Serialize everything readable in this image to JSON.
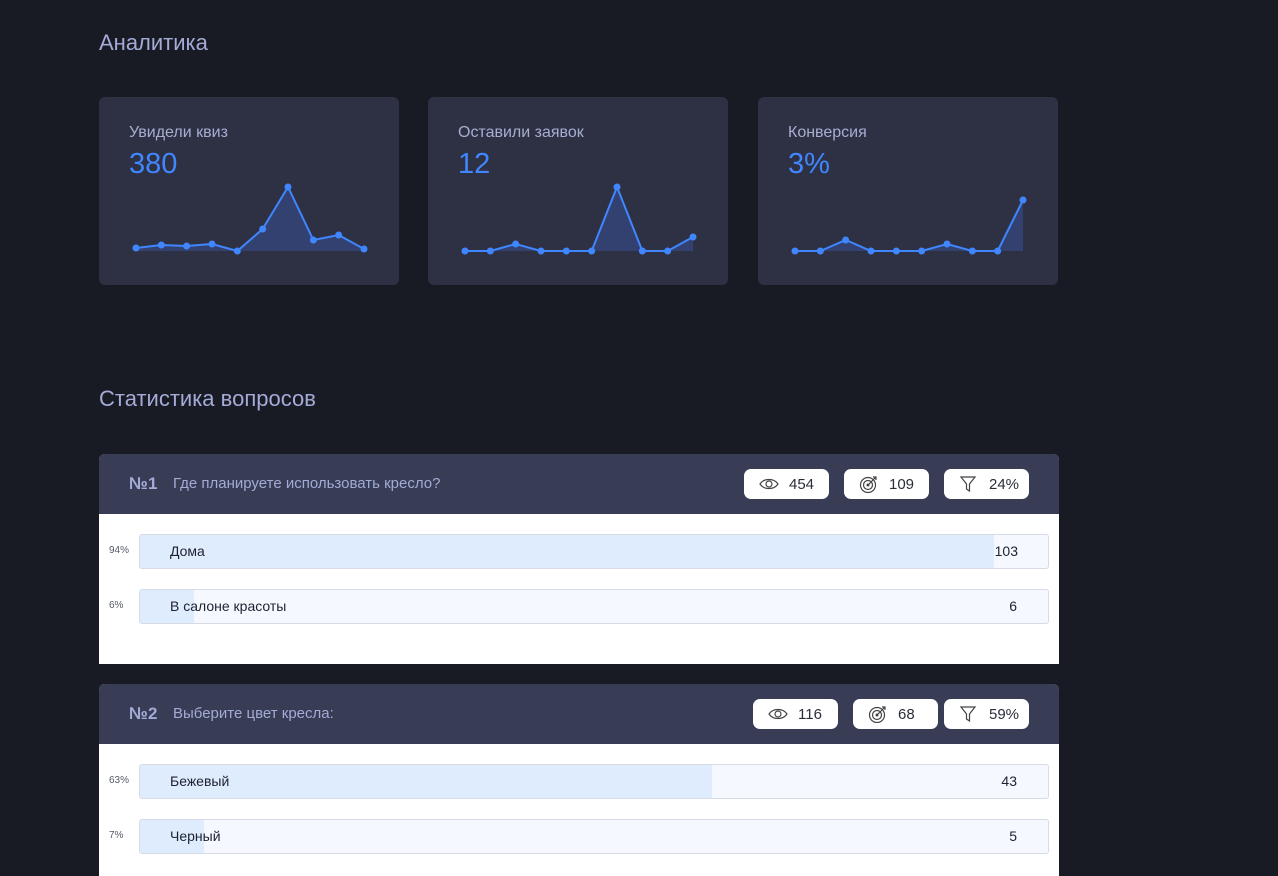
{
  "analytics": {
    "title": "Аналитика",
    "cards": [
      {
        "label": "Увидели квиз",
        "value": "380",
        "series": [
          3,
          6,
          5,
          7,
          0,
          22,
          64,
          11,
          16,
          2
        ]
      },
      {
        "label": "Оставили заявок",
        "value": "12",
        "series": [
          0,
          0,
          7,
          0,
          0,
          0,
          64,
          0,
          0,
          14
        ]
      },
      {
        "label": "Конверсия",
        "value": "3%",
        "series": [
          0,
          0,
          11,
          0,
          0,
          0,
          7,
          0,
          0,
          51
        ]
      }
    ],
    "accent_color": "#3f86ff",
    "card_bg": "#2e3144"
  },
  "questions": {
    "title": "Статистика вопросов",
    "items": [
      {
        "number": "№1",
        "text": "Где планируете использовать кресло?",
        "stats": {
          "views": "454",
          "answers": "109",
          "conversion": "24%"
        },
        "answers": [
          {
            "percent_label": "94%",
            "fill": 0.94,
            "label": "Дома",
            "count": "103"
          },
          {
            "percent_label": "6%",
            "fill": 0.06,
            "label": "В салоне красоты",
            "count": "6"
          }
        ]
      },
      {
        "number": "№2",
        "text": "Выберите цвет кресла:",
        "stats": {
          "views": "116",
          "answers": "68",
          "conversion": "59%"
        },
        "answers": [
          {
            "percent_label": "63%",
            "fill": 0.63,
            "label": "Бежевый",
            "count": "43"
          },
          {
            "percent_label": "7%",
            "fill": 0.07,
            "label": "Черный",
            "count": "5"
          }
        ]
      }
    ]
  },
  "icons": {
    "views": "eye-icon",
    "answers": "target-icon",
    "conversion": "funnel-icon"
  }
}
